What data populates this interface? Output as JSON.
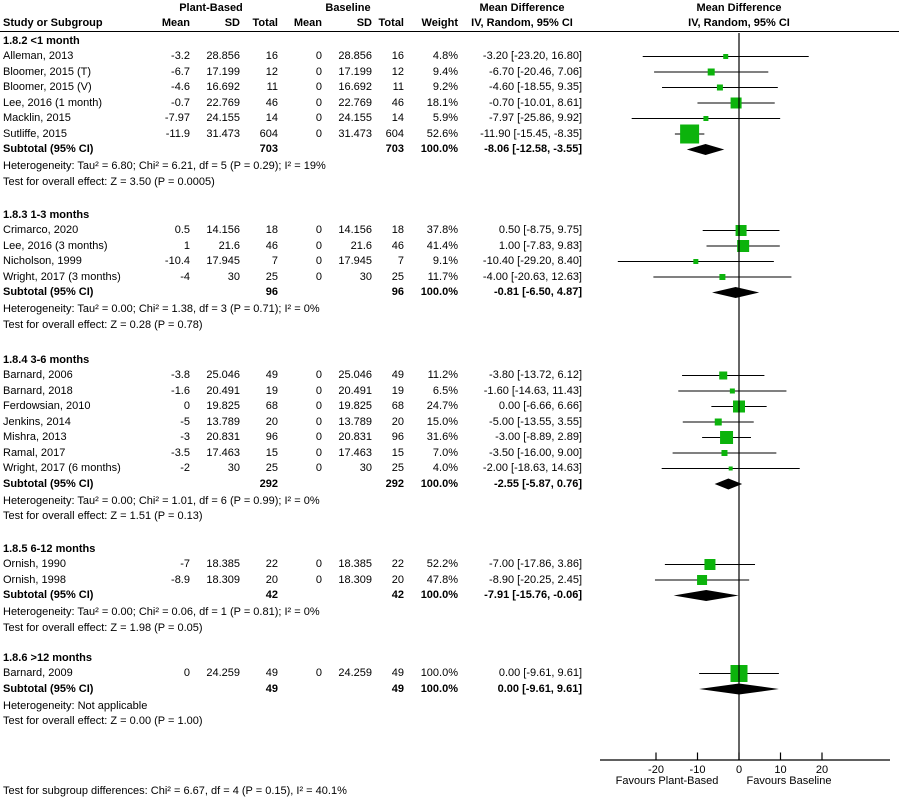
{
  "header": {
    "group1_label": "Plant-Based",
    "group2_label": "Baseline",
    "study_col": "Study or Subgroup",
    "mean_col": "Mean",
    "sd_col": "SD",
    "total_col": "Total",
    "weight_col": "Weight",
    "md_title": "Mean Difference",
    "md_subtitle": "IV, Random, 95% CI"
  },
  "colors": {
    "square": "#0cb30c",
    "diamond": "#000000",
    "line": "#000000",
    "text": "#000000"
  },
  "chart_data": {
    "type": "forest",
    "effect_measure": "Mean Difference",
    "method": "IV, Random, 95% CI",
    "axis": {
      "ticks": [
        -20,
        -10,
        0,
        10,
        20
      ],
      "range": [
        -33,
        36
      ],
      "label_left": "Favours Plant-Based",
      "label_right": "Favours Baseline"
    },
    "subgroups": [
      {
        "label": "1.8.2 <1 month",
        "studies": [
          {
            "name": "Alleman, 2013",
            "mean1": "-3.2",
            "sd1": "28.856",
            "n1": "16",
            "mean2": "0",
            "sd2": "28.856",
            "n2": "16",
            "weight": "4.8%",
            "md": "-3.20 [-23.20, 16.80]",
            "est": -3.2,
            "lo": -23.2,
            "hi": 16.8,
            "sq": 5
          },
          {
            "name": "Bloomer, 2015 (T)",
            "mean1": "-6.7",
            "sd1": "17.199",
            "n1": "12",
            "mean2": "0",
            "sd2": "17.199",
            "n2": "12",
            "weight": "9.4%",
            "md": "-6.70 [-20.46, 7.06]",
            "est": -6.7,
            "lo": -20.46,
            "hi": 7.06,
            "sq": 7
          },
          {
            "name": "Bloomer, 2015 (V)",
            "mean1": "-4.6",
            "sd1": "16.692",
            "n1": "11",
            "mean2": "0",
            "sd2": "16.692",
            "n2": "11",
            "weight": "9.2%",
            "md": "-4.60 [-18.55, 9.35]",
            "est": -4.6,
            "lo": -18.55,
            "hi": 9.35,
            "sq": 6
          },
          {
            "name": "Lee, 2016 (1 month)",
            "mean1": "-0.7",
            "sd1": "22.769",
            "n1": "46",
            "mean2": "0",
            "sd2": "22.769",
            "n2": "46",
            "weight": "18.1%",
            "md": "-0.70 [-10.01, 8.61]",
            "est": -0.7,
            "lo": -10.01,
            "hi": 8.61,
            "sq": 11
          },
          {
            "name": "Macklin, 2015",
            "mean1": "-7.97",
            "sd1": "24.155",
            "n1": "14",
            "mean2": "0",
            "sd2": "24.155",
            "n2": "14",
            "weight": "5.9%",
            "md": "-7.97 [-25.86, 9.92]",
            "est": -7.97,
            "lo": -25.86,
            "hi": 9.92,
            "sq": 5
          },
          {
            "name": "Sutliffe, 2015",
            "mean1": "-11.9",
            "sd1": "31.473",
            "n1": "604",
            "mean2": "0",
            "sd2": "31.473",
            "n2": "604",
            "weight": "52.6%",
            "md": "-11.90 [-15.45, -8.35]",
            "est": -11.9,
            "lo": -15.45,
            "hi": -8.35,
            "sq": 19
          }
        ],
        "subtotal": {
          "label": "Subtotal (95% CI)",
          "n1": "703",
          "n2": "703",
          "weight": "100.0%",
          "md": "-8.06 [-12.58, -3.55]",
          "est": -8.06,
          "lo": -12.58,
          "hi": -3.55
        },
        "heterogeneity": "Heterogeneity: Tau² = 6.80; Chi² = 6.21, df = 5 (P = 0.29); I² = 19%",
        "overall_test": "Test for overall effect: Z = 3.50 (P = 0.0005)"
      },
      {
        "label": "1.8.3 1-3 months",
        "studies": [
          {
            "name": "Crimarco, 2020",
            "mean1": "0.5",
            "sd1": "14.156",
            "n1": "18",
            "mean2": "0",
            "sd2": "14.156",
            "n2": "18",
            "weight": "37.8%",
            "md": "0.50 [-8.75, 9.75]",
            "est": 0.5,
            "lo": -8.75,
            "hi": 9.75,
            "sq": 11
          },
          {
            "name": "Lee, 2016 (3 months)",
            "mean1": "1",
            "sd1": "21.6",
            "n1": "46",
            "mean2": "0",
            "sd2": "21.6",
            "n2": "46",
            "weight": "41.4%",
            "md": "1.00 [-7.83, 9.83]",
            "est": 1.0,
            "lo": -7.83,
            "hi": 9.83,
            "sq": 12
          },
          {
            "name": "Nicholson, 1999",
            "mean1": "-10.4",
            "sd1": "17.945",
            "n1": "7",
            "mean2": "0",
            "sd2": "17.945",
            "n2": "7",
            "weight": "9.1%",
            "md": "-10.40 [-29.20, 8.40]",
            "est": -10.4,
            "lo": -29.2,
            "hi": 8.4,
            "sq": 5
          },
          {
            "name": "Wright, 2017 (3 months)",
            "mean1": "-4",
            "sd1": "30",
            "n1": "25",
            "mean2": "0",
            "sd2": "30",
            "n2": "25",
            "weight": "11.7%",
            "md": "-4.00 [-20.63, 12.63]",
            "est": -4.0,
            "lo": -20.63,
            "hi": 12.63,
            "sq": 6
          }
        ],
        "subtotal": {
          "label": "Subtotal (95% CI)",
          "n1": "96",
          "n2": "96",
          "weight": "100.0%",
          "md": "-0.81 [-6.50, 4.87]",
          "est": -0.81,
          "lo": -6.5,
          "hi": 4.87
        },
        "heterogeneity": "Heterogeneity: Tau² = 0.00; Chi² = 1.38, df = 3 (P = 0.71); I² = 0%",
        "overall_test": "Test for overall effect: Z = 0.28 (P = 0.78)"
      },
      {
        "label": "1.8.4 3-6 months",
        "studies": [
          {
            "name": "Barnard, 2006",
            "mean1": "-3.8",
            "sd1": "25.046",
            "n1": "49",
            "mean2": "0",
            "sd2": "25.046",
            "n2": "49",
            "weight": "11.2%",
            "md": "-3.80 [-13.72, 6.12]",
            "est": -3.8,
            "lo": -13.72,
            "hi": 6.12,
            "sq": 8
          },
          {
            "name": "Barnard, 2018",
            "mean1": "-1.6",
            "sd1": "20.491",
            "n1": "19",
            "mean2": "0",
            "sd2": "20.491",
            "n2": "19",
            "weight": "6.5%",
            "md": "-1.60 [-14.63, 11.43]",
            "est": -1.6,
            "lo": -14.63,
            "hi": 11.43,
            "sq": 5
          },
          {
            "name": "Ferdowsian, 2010",
            "mean1": "0",
            "sd1": "19.825",
            "n1": "68",
            "mean2": "0",
            "sd2": "19.825",
            "n2": "68",
            "weight": "24.7%",
            "md": "0.00 [-6.66, 6.66]",
            "est": 0.0,
            "lo": -6.66,
            "hi": 6.66,
            "sq": 12
          },
          {
            "name": "Jenkins, 2014",
            "mean1": "-5",
            "sd1": "13.789",
            "n1": "20",
            "mean2": "0",
            "sd2": "13.789",
            "n2": "20",
            "weight": "15.0%",
            "md": "-5.00 [-13.55, 3.55]",
            "est": -5.0,
            "lo": -13.55,
            "hi": 3.55,
            "sq": 7
          },
          {
            "name": "Mishra, 2013",
            "mean1": "-3",
            "sd1": "20.831",
            "n1": "96",
            "mean2": "0",
            "sd2": "20.831",
            "n2": "96",
            "weight": "31.6%",
            "md": "-3.00 [-8.89, 2.89]",
            "est": -3.0,
            "lo": -8.89,
            "hi": 2.89,
            "sq": 13
          },
          {
            "name": "Ramal, 2017",
            "mean1": "-3.5",
            "sd1": "17.463",
            "n1": "15",
            "mean2": "0",
            "sd2": "17.463",
            "n2": "15",
            "weight": "7.0%",
            "md": "-3.50 [-16.00, 9.00]",
            "est": -3.5,
            "lo": -16.0,
            "hi": 9.0,
            "sq": 6
          },
          {
            "name": "Wright, 2017 (6 months)",
            "mean1": "-2",
            "sd1": "30",
            "n1": "25",
            "mean2": "0",
            "sd2": "30",
            "n2": "25",
            "weight": "4.0%",
            "md": "-2.00 [-18.63, 14.63]",
            "est": -2.0,
            "lo": -18.63,
            "hi": 14.63,
            "sq": 4
          }
        ],
        "subtotal": {
          "label": "Subtotal (95% CI)",
          "n1": "292",
          "n2": "292",
          "weight": "100.0%",
          "md": "-2.55 [-5.87, 0.76]",
          "est": -2.55,
          "lo": -5.87,
          "hi": 0.76
        },
        "heterogeneity": "Heterogeneity: Tau² = 0.00; Chi² = 1.01, df = 6 (P = 0.99); I² = 0%",
        "overall_test": "Test for overall effect: Z = 1.51 (P = 0.13)"
      },
      {
        "label": "1.8.5 6-12 months",
        "studies": [
          {
            "name": "Ornish, 1990",
            "mean1": "-7",
            "sd1": "18.385",
            "n1": "22",
            "mean2": "0",
            "sd2": "18.385",
            "n2": "22",
            "weight": "52.2%",
            "md": "-7.00 [-17.86, 3.86]",
            "est": -7.0,
            "lo": -17.86,
            "hi": 3.86,
            "sq": 11
          },
          {
            "name": "Ornish, 1998",
            "mean1": "-8.9",
            "sd1": "18.309",
            "n1": "20",
            "mean2": "0",
            "sd2": "18.309",
            "n2": "20",
            "weight": "47.8%",
            "md": "-8.90 [-20.25, 2.45]",
            "est": -8.9,
            "lo": -20.25,
            "hi": 2.45,
            "sq": 10
          }
        ],
        "subtotal": {
          "label": "Subtotal (95% CI)",
          "n1": "42",
          "n2": "42",
          "weight": "100.0%",
          "md": "-7.91 [-15.76, -0.06]",
          "est": -7.91,
          "lo": -15.76,
          "hi": -0.06
        },
        "heterogeneity": "Heterogeneity: Tau² = 0.00; Chi² = 0.06, df = 1 (P = 0.81); I² = 0%",
        "overall_test": "Test for overall effect: Z = 1.98 (P = 0.05)"
      },
      {
        "label": "1.8.6 >12 months",
        "studies": [
          {
            "name": "Barnard, 2009",
            "mean1": "0",
            "sd1": "24.259",
            "n1": "49",
            "mean2": "0",
            "sd2": "24.259",
            "n2": "49",
            "weight": "100.0%",
            "md": "0.00 [-9.61, 9.61]",
            "est": 0.0,
            "lo": -9.61,
            "hi": 9.61,
            "sq": 17
          }
        ],
        "subtotal": {
          "label": "Subtotal (95% CI)",
          "n1": "49",
          "n2": "49",
          "weight": "100.0%",
          "md": "0.00 [-9.61, 9.61]",
          "est": 0.0,
          "lo": -9.61,
          "hi": 9.61
        },
        "heterogeneity": "Heterogeneity: Not applicable",
        "overall_test": "Test for overall effect: Z = 0.00 (P = 1.00)"
      }
    ],
    "footer": "Test for subgroup differences: Chi² = 6.67, df = 4 (P = 0.15), I² = 40.1%"
  }
}
